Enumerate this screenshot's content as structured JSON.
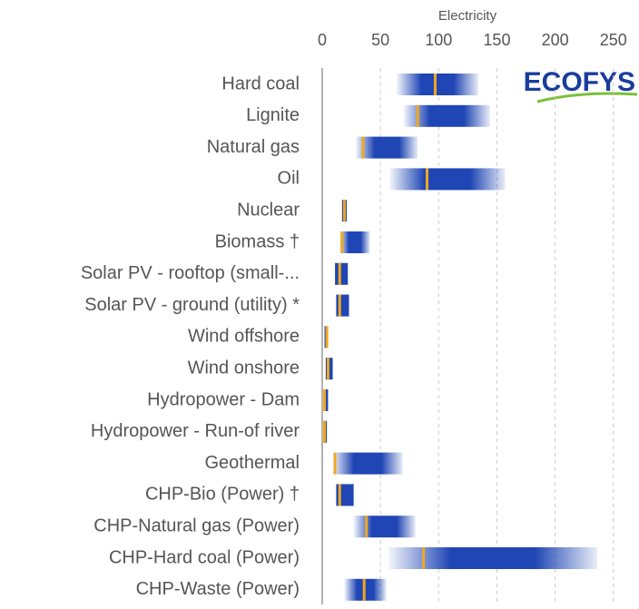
{
  "chart_data": {
    "type": "range_bar",
    "xlabel": "Electricity",
    "logo": "ECOFYS",
    "categories": [
      "Hard coal",
      "Lignite",
      "Natural gas",
      "Oil",
      "Nuclear",
      "Biomass †",
      "Solar PV - rooftop (small-...",
      "Solar PV - ground (utility) *",
      "Wind offshore",
      "Wind onshore",
      "Hydropower - Dam",
      "Hydropower - Run-of river",
      "Geothermal",
      "CHP-Bio (Power) †",
      "CHP-Natural gas (Power)",
      "CHP-Hard coal (Power)",
      "CHP-Waste (Power)"
    ],
    "low": [
      64,
      70,
      29,
      58,
      17,
      15,
      11,
      12,
      2,
      3,
      2,
      1,
      9,
      12,
      27,
      57,
      19
    ],
    "high": [
      134,
      144,
      82,
      157,
      21,
      41,
      22,
      23,
      5,
      9,
      5,
      4,
      69,
      27,
      80,
      236,
      55
    ],
    "central": [
      97,
      82,
      35,
      90,
      19,
      17,
      15,
      15,
      4,
      5,
      2,
      2,
      11,
      15,
      38,
      87,
      36
    ],
    "color": "#1f46b4",
    "marker_color": "#f0a81e",
    "xlim": [
      0,
      270
    ],
    "xticks": [
      0,
      50,
      100,
      150,
      200,
      250
    ],
    "grid": true
  }
}
